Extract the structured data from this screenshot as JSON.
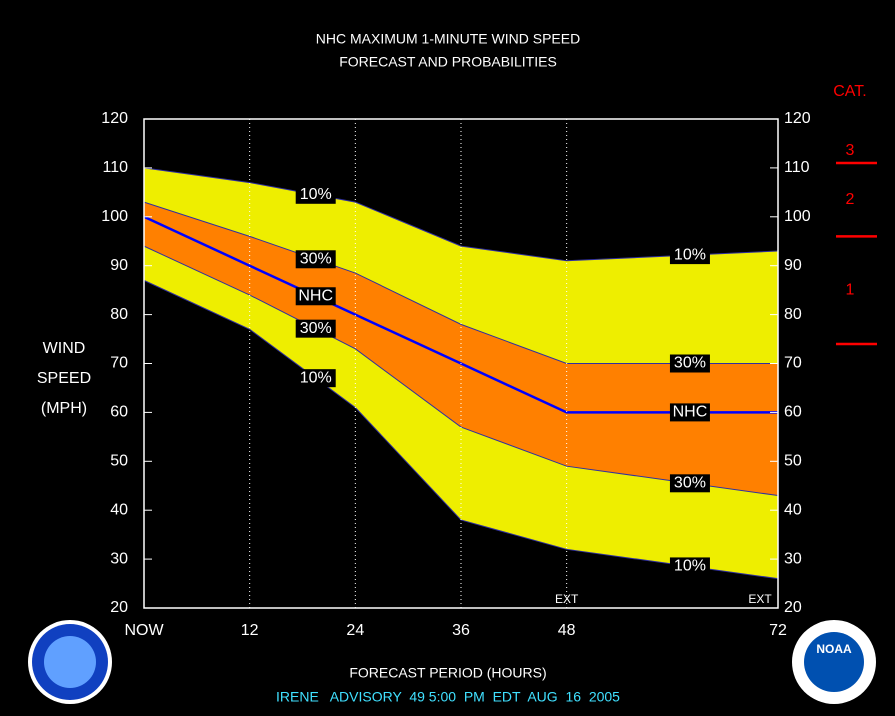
{
  "chart_data": {
    "type": "band",
    "title": [
      "NHC MAXIMUM 1-MINUTE WIND SPEED",
      "FORECAST AND PROBABILITIES"
    ],
    "ylabel": [
      "WIND",
      "SPEED",
      "(MPH)"
    ],
    "xlabel": "FORECAST PERIOD (HOURS)",
    "footer": "IRENE   ADVISORY  49 5:00  PM  EDT  AUG  16  2005",
    "x": [
      0,
      12,
      24,
      36,
      48,
      72
    ],
    "xlim": [
      0,
      72
    ],
    "xticks": [
      {
        "value": 0,
        "label": "NOW"
      },
      12,
      24,
      36,
      48,
      72
    ],
    "ylim": [
      20,
      120
    ],
    "yticks": [
      20,
      30,
      40,
      50,
      60,
      70,
      80,
      90,
      100,
      110,
      120
    ],
    "series": [
      {
        "name": "10%",
        "color": "#eeee00",
        "values": [
          110,
          107,
          103,
          94,
          91,
          93
        ]
      },
      {
        "name": "30%",
        "color": "#ff8000",
        "values": [
          103,
          96,
          88.5,
          78,
          70,
          70
        ]
      },
      {
        "name": "NHC",
        "color": "#0000ff",
        "values": [
          100,
          90,
          80,
          70,
          60,
          60
        ]
      },
      {
        "name": "30%",
        "color": "#ff8000",
        "values": [
          94,
          84,
          73,
          57,
          49,
          43
        ]
      },
      {
        "name": "10%",
        "color": "#eeee00",
        "values": [
          87,
          77,
          61,
          38,
          32,
          26
        ]
      }
    ],
    "annotations": [
      {
        "text": "EXT",
        "x": 48
      },
      {
        "text": "EXT",
        "x": 72
      }
    ],
    "category_scale": {
      "title": "CAT.",
      "labels": [
        "3",
        "2",
        "1"
      ],
      "thresholds": [
        111,
        96,
        74
      ],
      "color": "#ff0000"
    },
    "logo": "NOAA"
  }
}
